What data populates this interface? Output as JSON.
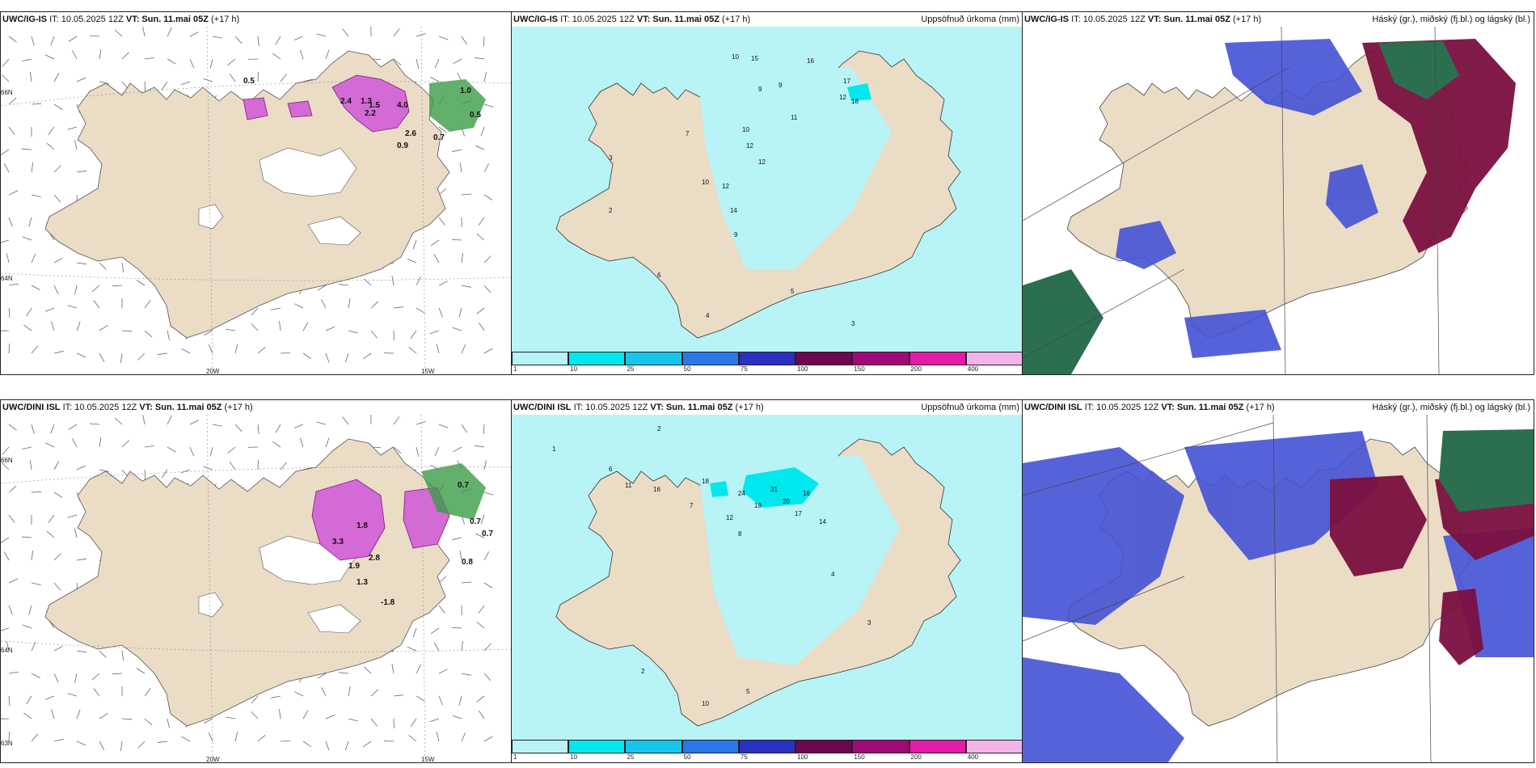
{
  "panels": {
    "p1": {
      "model": "UWC/IG-IS",
      "it": "IT: 10.05.2025 12Z",
      "vt": "VT: Sun. 11.mai 05Z",
      "lead": "(+17 h)",
      "title": ""
    },
    "p2": {
      "model": "UWC/IG-IS",
      "it": "IT: 10.05.2025 12Z",
      "vt": "VT: Sun. 11.mai 05Z",
      "lead": "(+17 h)",
      "title": "Uppsöfnuð úrkoma (mm)"
    },
    "p3": {
      "model": "UWC/IG-IS",
      "it": "IT: 10.05.2025 12Z",
      "vt": "VT: Sun. 11.mai 05Z",
      "lead": "(+17 h)",
      "title": "Háský (gr.), miðský (fj.bl.) og lágský (bl.)"
    },
    "p4": {
      "model": "UWC/DINI ISL",
      "it": "IT: 10.05.2025 12Z",
      "vt": "VT: Sun. 11.mai 05Z",
      "lead": "(+17 h)",
      "title": ""
    },
    "p5": {
      "model": "UWC/DINI ISL",
      "it": "IT: 10.05.2025 12Z",
      "vt": "VT: Sun. 11.mai 05Z",
      "lead": "(+17 h)",
      "title": "Uppsöfnuð úrkoma (mm)"
    },
    "p6": {
      "model": "UWC/DINI ISL",
      "it": "IT: 10.05.2025 12Z",
      "vt": "VT: Sun. 11.mai 05Z",
      "lead": "(+17 h)",
      "title": "Háský (gr.), miðský (fj.bl.) og lágský (bl.)"
    }
  },
  "axes": {
    "lon_20w": "20W",
    "lon_15w": "15W",
    "lat_66n": "66N",
    "lat_64n": "64N",
    "lat_63n": "63N"
  },
  "legend": {
    "ticks": [
      "1",
      "10",
      "25",
      "50",
      "75",
      "100",
      "150",
      "200",
      "400"
    ],
    "colors": [
      "#b8f4f6",
      "#00e8ee",
      "#14c6ee",
      "#2a78e8",
      "#2a30c0",
      "#6e0650",
      "#a00a78",
      "#e41aa8",
      "#f4b4ea"
    ]
  },
  "colors": {
    "land": "#ebdcc6",
    "precip_light": "#b8f4f6",
    "precip_med": "#00e8ee",
    "pink_field": "#d46ad6",
    "green_field": "#3c9c48",
    "cloud_high": "#2c6e50",
    "cloud_mid": "#7a1040",
    "cloud_low": "#4452d4"
  },
  "labels": {
    "p1": [
      "0.5",
      "1.0",
      "0.5",
      "2.4",
      "1.3",
      "1.5",
      "2.2",
      "4.0",
      "2.6",
      "0.7",
      "0.9"
    ],
    "p4": [
      "0.7",
      "0.7",
      "0.7",
      "1.8",
      "3.3",
      "2.8",
      "1.9",
      "1.3",
      "-1.8",
      "0.8"
    ],
    "p2": [
      "10",
      "15",
      "16",
      "9",
      "9",
      "17",
      "12",
      "18",
      "11",
      "10",
      "12",
      "12",
      "7",
      "10",
      "12",
      "14",
      "9",
      "3",
      "2",
      "6",
      "4",
      "5",
      "3"
    ],
    "p5": [
      "2",
      "1",
      "6",
      "11",
      "16",
      "18",
      "31",
      "24",
      "19",
      "16",
      "20",
      "17",
      "14",
      "12",
      "7",
      "8",
      "10",
      "5",
      "4",
      "3",
      "2"
    ]
  }
}
